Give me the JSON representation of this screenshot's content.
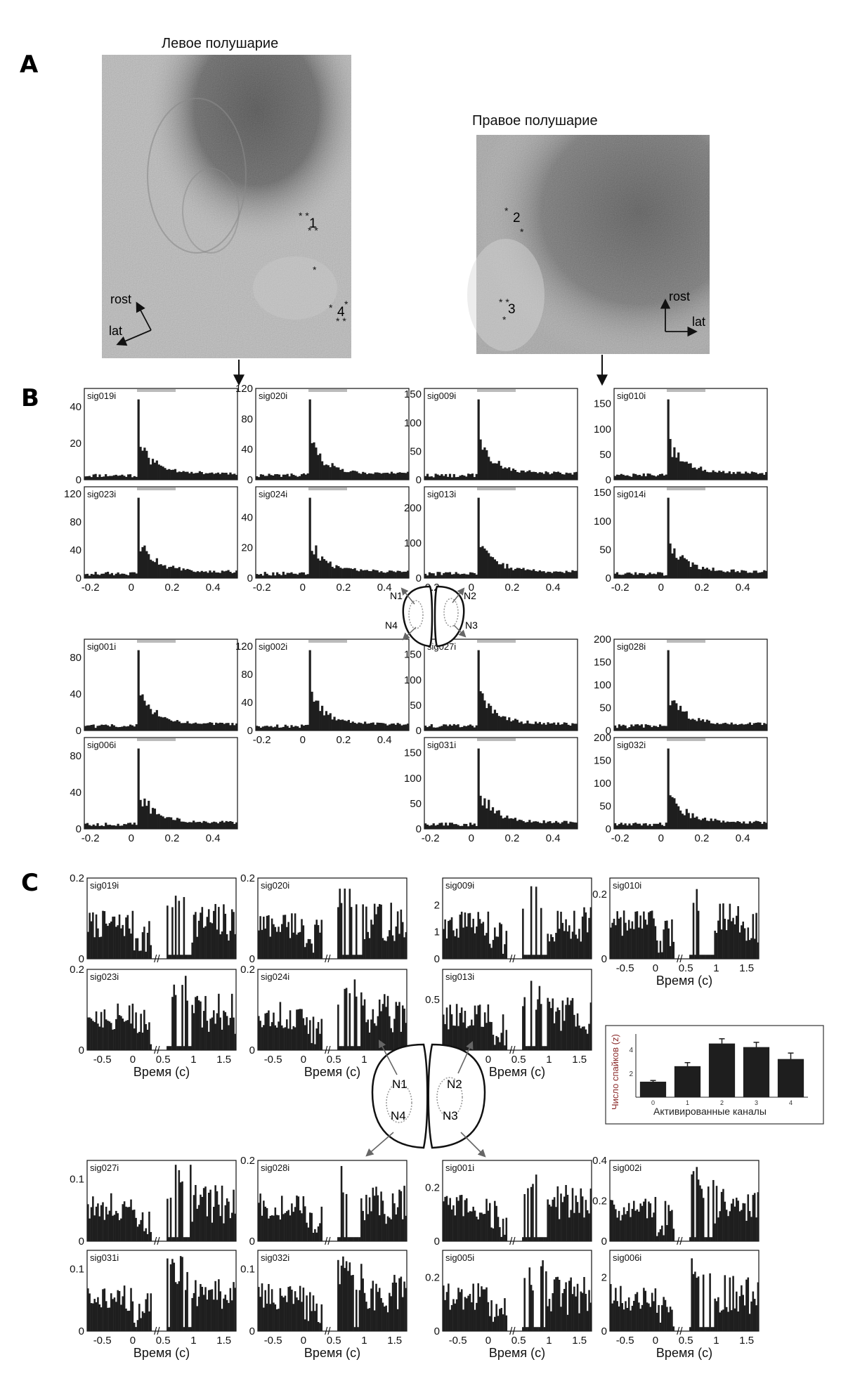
{
  "panels": {
    "a": "A",
    "b": "B",
    "c": "C"
  },
  "hemispheres": {
    "left": "Левое полушарие",
    "right": "Правое полушарие"
  },
  "orientation": {
    "rost": "rost",
    "lat": "lat"
  },
  "sites": {
    "s1": "1",
    "s2": "2",
    "s3": "3",
    "s4": "4"
  },
  "schematic": {
    "n1": "N1",
    "n2": "N2",
    "n3": "N3",
    "n4": "N4"
  },
  "time_axis_label": "Время (с)",
  "inset": {
    "ylabel": "Число спайков (z)",
    "xlabel": "Активированные каналы"
  },
  "chart_data": [
    {
      "type": "bar",
      "panel": "B",
      "channel": "sig019i",
      "ylim": [
        0,
        50
      ],
      "yticks": [
        0,
        20,
        40
      ],
      "xticks": [],
      "peak_x": 0.03
    },
    {
      "type": "bar",
      "panel": "B",
      "channel": "sig020i",
      "ylim": [
        0,
        120
      ],
      "yticks": [
        0,
        40,
        80,
        120
      ],
      "xticks": [],
      "peak_x": 0.03
    },
    {
      "type": "bar",
      "panel": "B",
      "channel": "sig009i",
      "ylim": [
        0,
        160
      ],
      "yticks": [
        0,
        50,
        100,
        150
      ],
      "xticks": [],
      "peak_x": 0.03
    },
    {
      "type": "bar",
      "panel": "B",
      "channel": "sig010i",
      "ylim": [
        0,
        180
      ],
      "yticks": [
        0,
        50,
        100,
        150
      ],
      "xticks": [],
      "peak_x": 0.03
    },
    {
      "type": "bar",
      "panel": "B",
      "channel": "sig023i",
      "ylim": [
        0,
        130
      ],
      "yticks": [
        0,
        40,
        80,
        120
      ],
      "xticks": [
        "-0.2",
        "0",
        "0.2",
        "0.4"
      ],
      "peak_x": 0.03
    },
    {
      "type": "bar",
      "panel": "B",
      "channel": "sig024i",
      "ylim": [
        0,
        60
      ],
      "yticks": [
        0,
        20,
        40
      ],
      "xticks": [
        "-0.2",
        "0",
        "0.2",
        "0.4"
      ],
      "peak_x": 0.03
    },
    {
      "type": "bar",
      "panel": "B",
      "channel": "sig013i",
      "ylim": [
        0,
        260
      ],
      "yticks": [
        0,
        100,
        200
      ],
      "xticks": [
        "-0.2",
        "0",
        "0.2",
        "0.4"
      ],
      "peak_x": 0.03
    },
    {
      "type": "bar",
      "panel": "B",
      "channel": "sig014i",
      "ylim": [
        0,
        160
      ],
      "yticks": [
        0,
        50,
        100,
        150
      ],
      "xticks": [
        "-0.2",
        "0",
        "0.2",
        "0.4"
      ],
      "peak_x": 0.03
    },
    {
      "type": "bar",
      "panel": "B",
      "channel": "sig001i",
      "ylim": [
        0,
        100
      ],
      "yticks": [
        0,
        40,
        80
      ],
      "xticks": [],
      "peak_x": 0.03
    },
    {
      "type": "bar",
      "panel": "B",
      "channel": "sig002i",
      "ylim": [
        0,
        130
      ],
      "yticks": [
        0,
        40,
        80,
        120
      ],
      "xticks": [
        "-0.2",
        "0",
        "0.2",
        "0.4"
      ],
      "peak_x": 0.03
    },
    {
      "type": "bar",
      "panel": "B",
      "channel": "sig027i",
      "ylim": [
        0,
        180
      ],
      "yticks": [
        0,
        50,
        100,
        150
      ],
      "xticks": [],
      "peak_x": 0.03
    },
    {
      "type": "bar",
      "panel": "B",
      "channel": "sig028i",
      "ylim": [
        0,
        200
      ],
      "yticks": [
        0,
        50,
        100,
        150,
        200
      ],
      "xticks": [],
      "peak_x": 0.03
    },
    {
      "type": "bar",
      "panel": "B",
      "channel": "sig006i",
      "ylim": [
        0,
        100
      ],
      "yticks": [
        0,
        40,
        80
      ],
      "xticks": [
        "-0.2",
        "0",
        "0.2",
        "0.4"
      ],
      "peak_x": 0.03
    },
    {
      "type": "bar",
      "panel": "B",
      "channel": "sig031i",
      "ylim": [
        0,
        180
      ],
      "yticks": [
        0,
        50,
        100,
        150
      ],
      "xticks": [
        "-0.2",
        "0",
        "0.2",
        "0.4"
      ],
      "peak_x": 0.03
    },
    {
      "type": "bar",
      "panel": "B",
      "channel": "sig032i",
      "ylim": [
        0,
        200
      ],
      "yticks": [
        0,
        50,
        100,
        150,
        200
      ],
      "xticks": [
        "-0.2",
        "0",
        "0.2",
        "0.4"
      ],
      "peak_x": 0.03
    },
    {
      "type": "bar",
      "panel": "C",
      "channel": "sig019i",
      "ylim": [
        0,
        0.2
      ],
      "yticks": [
        "0",
        "0.2"
      ],
      "xticks": []
    },
    {
      "type": "bar",
      "panel": "C",
      "channel": "sig020i",
      "ylim": [
        0,
        0.2
      ],
      "yticks": [
        "0",
        "0.2"
      ],
      "xticks": []
    },
    {
      "type": "bar",
      "panel": "C",
      "channel": "sig009i",
      "ylim": [
        0,
        3
      ],
      "yticks": [
        "0",
        "1",
        "2"
      ],
      "xticks": []
    },
    {
      "type": "bar",
      "panel": "C",
      "channel": "sig010i",
      "ylim": [
        0,
        0.25
      ],
      "yticks": [
        "0",
        "0.2"
      ],
      "xticks": [
        "-0.5",
        "0",
        "0.5",
        "1",
        "1.5"
      ]
    },
    {
      "type": "bar",
      "panel": "C",
      "channel": "sig023i",
      "ylim": [
        0,
        0.2
      ],
      "yticks": [
        "0",
        "0.2"
      ],
      "xticks": [
        "-0.5",
        "0",
        "0.5",
        "1",
        "1.5"
      ]
    },
    {
      "type": "bar",
      "panel": "C",
      "channel": "sig024i",
      "ylim": [
        0,
        0.2
      ],
      "yticks": [
        "0",
        "0.2"
      ],
      "xticks": [
        "-0.5",
        "0",
        "0.5",
        "1",
        "1.5"
      ]
    },
    {
      "type": "bar",
      "panel": "C",
      "channel": "sig013i",
      "ylim": [
        0,
        0.8
      ],
      "yticks": [
        "0",
        "0.5"
      ],
      "xticks": [
        "-0.5",
        "0",
        "0.5",
        "1",
        "1.5"
      ]
    },
    {
      "type": "bar",
      "panel": "C",
      "channel": "sig027i",
      "ylim": [
        0,
        0.13
      ],
      "yticks": [
        "0",
        "0.1"
      ],
      "xticks": []
    },
    {
      "type": "bar",
      "panel": "C",
      "channel": "sig028i",
      "ylim": [
        0,
        0.2
      ],
      "yticks": [
        "0",
        "0.2"
      ],
      "xticks": []
    },
    {
      "type": "bar",
      "panel": "C",
      "channel": "sig001i",
      "ylim": [
        0,
        0.3
      ],
      "yticks": [
        "0",
        "0.2"
      ],
      "xticks": []
    },
    {
      "type": "bar",
      "panel": "C",
      "channel": "sig002i",
      "ylim": [
        0,
        0.4
      ],
      "yticks": [
        "0",
        "0.2",
        "0.4"
      ],
      "xticks": []
    },
    {
      "type": "bar",
      "panel": "C",
      "channel": "sig031i",
      "ylim": [
        0,
        0.13
      ],
      "yticks": [
        "0",
        "0.1"
      ],
      "xticks": [
        "-0.5",
        "0",
        "0.5",
        "1",
        "1.5"
      ]
    },
    {
      "type": "bar",
      "panel": "C",
      "channel": "sig032i",
      "ylim": [
        0,
        0.13
      ],
      "yticks": [
        "0",
        "0.1"
      ],
      "xticks": [
        "-0.5",
        "0",
        "0.5",
        "1",
        "1.5"
      ]
    },
    {
      "type": "bar",
      "panel": "C",
      "channel": "sig005i",
      "ylim": [
        0,
        0.3
      ],
      "yticks": [
        "0",
        "0.2"
      ],
      "xticks": [
        "-0.5",
        "0",
        "0.5",
        "1",
        "1.5"
      ]
    },
    {
      "type": "bar",
      "panel": "C",
      "channel": "sig006i",
      "ylim": [
        0,
        3
      ],
      "yticks": [
        "0",
        "2"
      ],
      "xticks": [
        "-0.5",
        "0",
        "0.5",
        "1",
        "1.5"
      ]
    },
    {
      "type": "bar",
      "panel": "C-inset",
      "categories": [
        "0",
        "1",
        "2",
        "3",
        "4"
      ],
      "values": [
        1.3,
        2.6,
        4.5,
        4.2,
        3.2
      ],
      "errors": [
        0.1,
        0.3,
        0.4,
        0.4,
        0.5
      ],
      "ylim": [
        0,
        5.3
      ],
      "yticks": [
        "2",
        "4"
      ]
    }
  ]
}
